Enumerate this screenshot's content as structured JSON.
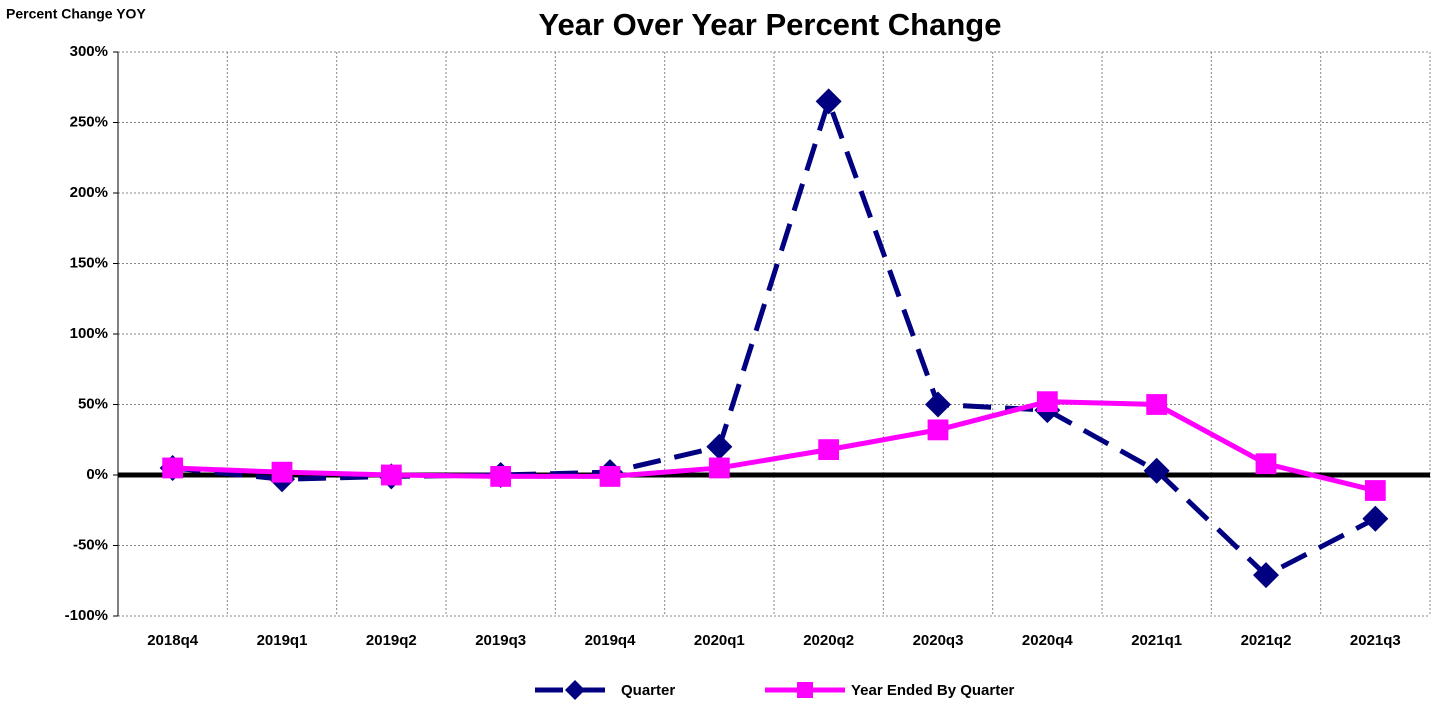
{
  "chart_data": {
    "type": "line",
    "title": "Year Over Year Percent Change",
    "ylabel": "Percent Change YOY",
    "categories": [
      "2018q4",
      "2019q1",
      "2019q2",
      "2019q3",
      "2019q4",
      "2020q1",
      "2020q2",
      "2020q3",
      "2020q4",
      "2021q1",
      "2021q2",
      "2021q3"
    ],
    "series": [
      {
        "name": "Quarter",
        "color": "#000080",
        "marker": "diamond",
        "dashed": true,
        "values": [
          5,
          -3,
          -1,
          0,
          2,
          20,
          265,
          50,
          46,
          3,
          -71,
          -31
        ]
      },
      {
        "name": "Year Ended By Quarter",
        "color": "#ff00ff",
        "marker": "square",
        "dashed": false,
        "values": [
          5,
          2,
          0,
          -1,
          -1,
          5,
          18,
          32,
          52,
          50,
          8,
          -11
        ]
      }
    ],
    "ylim": [
      -100,
      300
    ],
    "yticks": [
      {
        "value": -100,
        "label": "-100%"
      },
      {
        "value": -50,
        "label": "-50%"
      },
      {
        "value": 0,
        "label": "0%"
      },
      {
        "value": 50,
        "label": "50%"
      },
      {
        "value": 100,
        "label": "100%"
      },
      {
        "value": 150,
        "label": "150%"
      },
      {
        "value": 200,
        "label": "200%"
      },
      {
        "value": 250,
        "label": "250%"
      },
      {
        "value": 300,
        "label": "300%"
      }
    ],
    "grid": true,
    "legend": "bottom"
  }
}
